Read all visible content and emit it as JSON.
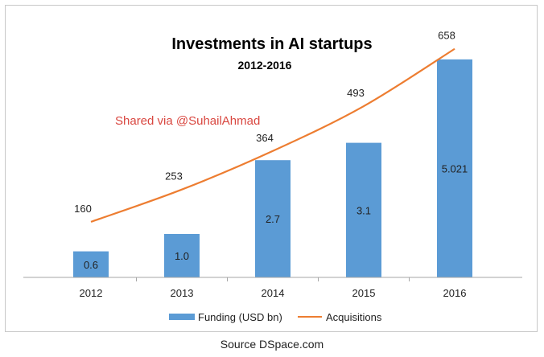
{
  "chart_data": {
    "type": "bar",
    "title": "Investments in AI startups",
    "subtitle": "2012-2016",
    "categories": [
      "2012",
      "2013",
      "2014",
      "2015",
      "2016"
    ],
    "series": [
      {
        "name": "Funding (USD bn)",
        "kind": "bar",
        "color": "#5b9bd5",
        "values": [
          0.6,
          1.0,
          2.7,
          3.1,
          5.021
        ],
        "labels": [
          "0.6",
          "1.0",
          "2.7",
          "3.1",
          "5.021"
        ]
      },
      {
        "name": "Acquisitions",
        "kind": "line",
        "color": "#ed7d31",
        "values": [
          160,
          253,
          364,
          493,
          658
        ],
        "labels": [
          "160",
          "253",
          "364",
          "493",
          "658"
        ]
      }
    ],
    "bar_axis_max": 6,
    "line_axis_max": 750,
    "grid": false,
    "legend": "bottom"
  },
  "watermark": "Shared via @SuhailAhmad",
  "source": "Source DSpace.com"
}
